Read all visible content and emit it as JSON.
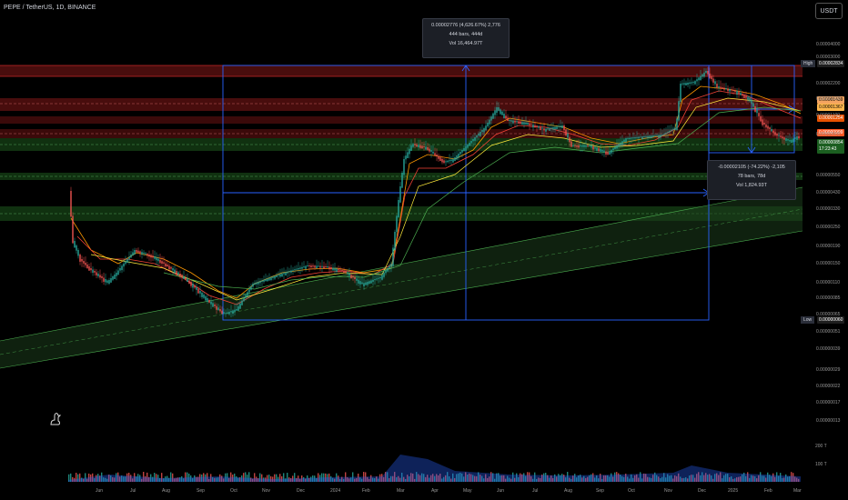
{
  "header": {
    "title": "PEPE / TetherUS, 1D, BINANCE",
    "currency_button": "USDT"
  },
  "price_axis": {
    "ticks": [
      "0.00004000",
      "0.00003000",
      "0.00002200",
      "0.00001600",
      "0.00001100",
      "0.00000800",
      "0.00000550",
      "0.00000430",
      "0.00000330",
      "0.00000250",
      "0.00000190",
      "0.00000150",
      "0.00000110",
      "0.00000085",
      "0.00000065",
      "0.00000051",
      "0.00000039",
      "0.00000029",
      "0.00000022",
      "0.00000017",
      "0.00000013"
    ],
    "high_label": "High",
    "high_value": "0.00002834",
    "low_label": "Low",
    "low_value": "0.00000060",
    "levels": [
      "0.00001439",
      "0.00001367",
      "0.00001254",
      "0.00000999"
    ],
    "current_price": "0.00000854",
    "countdown": "17:23:43"
  },
  "time_axis": [
    "Jun",
    "Jul",
    "Aug",
    "Sep",
    "Oct",
    "Nov",
    "Dec",
    "2024",
    "Feb",
    "Mar",
    "Apr",
    "May",
    "Jun",
    "Jul",
    "Aug",
    "Sep",
    "Oct",
    "Nov",
    "Dec",
    "2025",
    "Feb",
    "Mar"
  ],
  "volume_axis": [
    "200 T",
    "100 T"
  ],
  "measure_up": {
    "line1": "0.00002776 (4,626.67%) 2,776",
    "line2": "444 bars, 444d",
    "line3": "Vol 16,464.97T"
  },
  "measure_down": {
    "line1": "-0.00002105 (-74.22%) -2,105",
    "line2": "78 bars, 78d",
    "line3": "Vol 1,824.93T"
  },
  "colors": {
    "background": "#000000",
    "up": "#26a69a",
    "down": "#ef5350",
    "measure": "#2962ff",
    "zone_red": "#b22222",
    "zone_green": "#2e7d32"
  }
}
